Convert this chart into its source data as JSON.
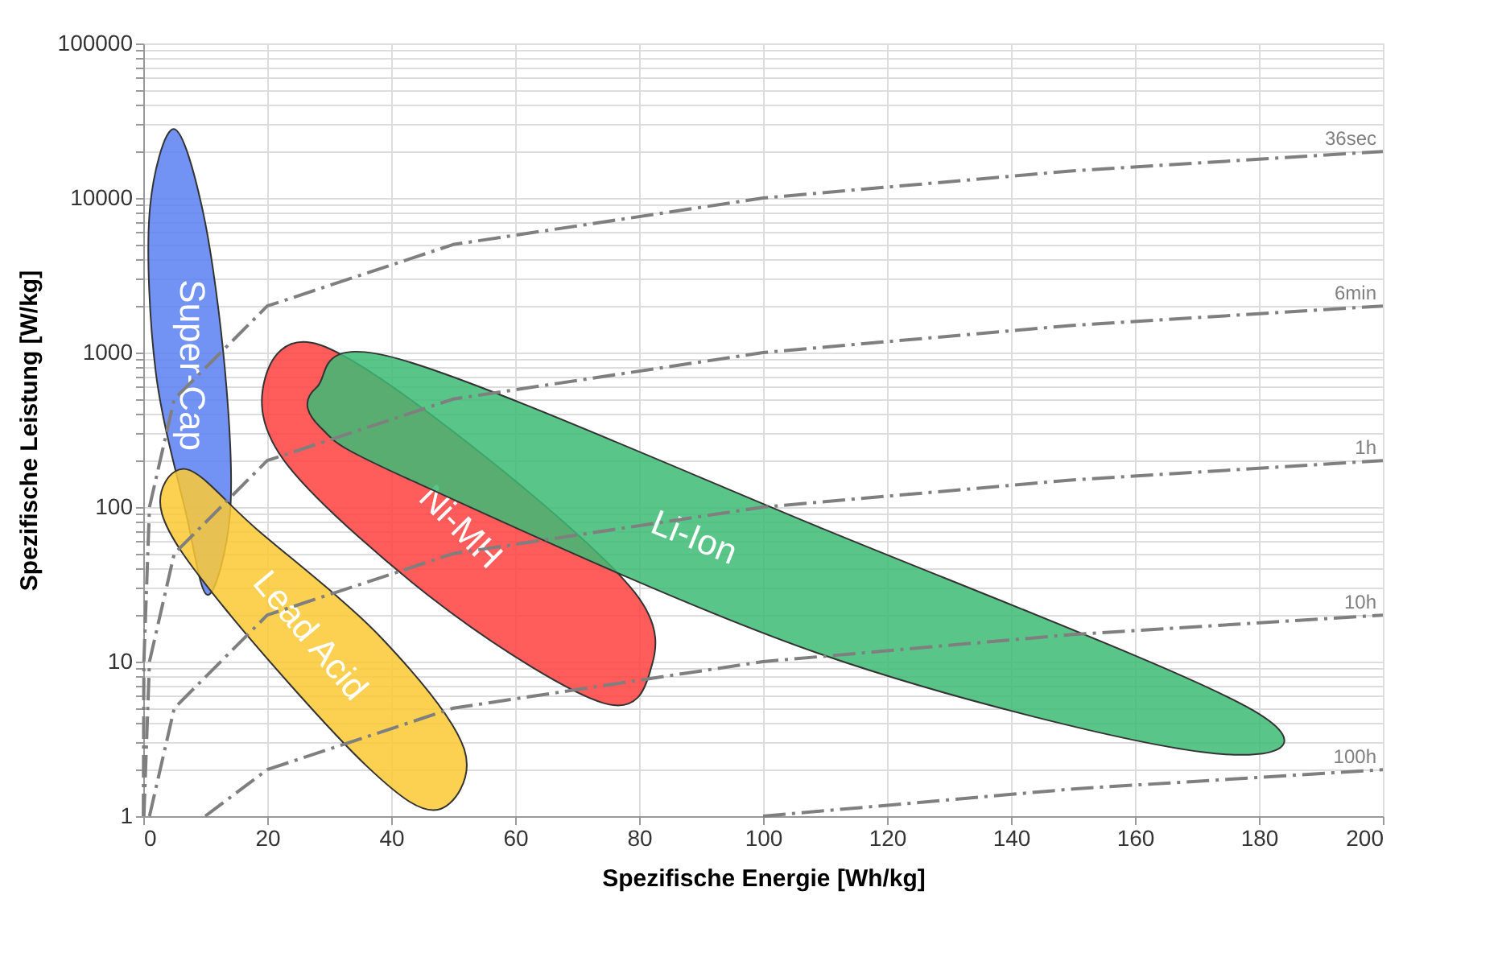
{
  "chart_data": {
    "type": "line",
    "xlabel": "Spezifische Energie [Wh/kg]",
    "ylabel": "Spezifische Leistung [W/kg]",
    "xlim": [
      0,
      200
    ],
    "xticks": [
      0,
      20,
      40,
      60,
      80,
      100,
      120,
      140,
      160,
      180,
      200
    ],
    "ylim": [
      1,
      100000
    ],
    "log": "y",
    "yticks": [
      1,
      {
        "value": 2,
        "label": null
      },
      {
        "value": 3,
        "label": null
      },
      {
        "value": 4,
        "label": null
      },
      {
        "value": 5,
        "label": null
      },
      {
        "value": 6,
        "label": null
      },
      {
        "value": 7,
        "label": null
      },
      {
        "value": 8,
        "label": null
      },
      {
        "value": 9,
        "label": null
      },
      10,
      {
        "value": 20,
        "label": null
      },
      {
        "value": 30,
        "label": null
      },
      {
        "value": 40,
        "label": null
      },
      {
        "value": 50,
        "label": null
      },
      {
        "value": 60,
        "label": null
      },
      {
        "value": 70,
        "label": null
      },
      {
        "value": 80,
        "label": null
      },
      {
        "value": 90,
        "label": null
      },
      100,
      {
        "value": 200,
        "label": null
      },
      {
        "value": 300,
        "label": null
      },
      {
        "value": 400,
        "label": null
      },
      {
        "value": 500,
        "label": null
      },
      {
        "value": 600,
        "label": null
      },
      {
        "value": 700,
        "label": null
      },
      {
        "value": 800,
        "label": null
      },
      {
        "value": 900,
        "label": null
      },
      1000,
      {
        "value": 2000,
        "label": null
      },
      {
        "value": 3000,
        "label": null
      },
      {
        "value": 4000,
        "label": null
      },
      {
        "value": 5000,
        "label": null
      },
      {
        "value": 6000,
        "label": null
      },
      {
        "value": 7000,
        "label": null
      },
      {
        "value": 8000,
        "label": null
      },
      {
        "value": 9000,
        "label": null
      },
      10000,
      {
        "value": 20000,
        "label": null
      },
      {
        "value": 30000,
        "label": null
      },
      {
        "value": 40000,
        "label": null
      },
      {
        "value": 50000,
        "label": null
      },
      {
        "value": 60000,
        "label": null
      },
      {
        "value": 70000,
        "label": null
      },
      {
        "value": 80000,
        "label": null
      },
      {
        "value": 90000,
        "label": null
      },
      100000
    ],
    "grid": true,
    "marker": "none",
    "series": [
      {
        "name": "36sec",
        "line_style": "dashed",
        "color": "#7f7f7f",
        "x": [
          0.01,
          0.1,
          1,
          5,
          20,
          50,
          100,
          150,
          200
        ],
        "values": [
          1,
          10,
          100,
          500,
          2000,
          5000,
          10000,
          15000,
          20000
        ]
      },
      {
        "name": "6min",
        "line_style": "dashed",
        "color": "#7f7f7f",
        "x": [
          0.1,
          1,
          5,
          20,
          50,
          100,
          150,
          200
        ],
        "values": [
          1,
          10,
          50,
          200,
          500,
          1000,
          1500,
          2000
        ]
      },
      {
        "name": "1h",
        "line_style": "dashed",
        "color": "#7f7f7f",
        "x": [
          1,
          5,
          20,
          50,
          100,
          150,
          200
        ],
        "values": [
          1,
          5,
          20,
          50,
          100,
          150,
          200
        ]
      },
      {
        "name": "10h",
        "line_style": "dashed",
        "color": "#7f7f7f",
        "x": [
          10,
          20,
          50,
          100,
          150,
          200
        ],
        "values": [
          1,
          2,
          5,
          10,
          15,
          20
        ]
      },
      {
        "name": "100h",
        "line_style": "dashed",
        "color": "#7f7f7f",
        "x": [
          100,
          150,
          200
        ],
        "values": [
          1,
          1.5,
          2
        ]
      },
      {
        "name": "Super-Cap",
        "type": "area",
        "color": "#5b80f2",
        "x": [
          4.9,
          9.7,
          13.2,
          14.0,
          10.4,
          6.9,
          2.0,
          1.0
        ],
        "values": [
          28000,
          7900,
          755,
          91,
          27,
          91,
          755,
          7900
        ]
      },
      {
        "name": "Lead Acid",
        "type": "area",
        "color": "#fcc934",
        "x": [
          6.9,
          18.3,
          38.6,
          51.8,
          47.5,
          36.1,
          13.2,
          3.0
        ],
        "values": [
          176,
          72,
          14,
          2.7,
          1.1,
          2.1,
          22,
          91
        ]
      },
      {
        "name": "Ni-MH",
        "type": "area",
        "color": "#ff4040",
        "x": [
          19.6,
          28.5,
          53.9,
          79.3,
          81.8,
          74.2,
          48.8,
          23.4
        ],
        "values": [
          670,
          1120,
          233,
          28,
          8.7,
          5.4,
          22,
          184
        ]
      },
      {
        "name": "Li-Ion",
        "type": "area",
        "color": "#3dbb74",
        "x": [
          28.0,
          41.2,
          109.8,
          179.2,
          170.8,
          109.8,
          43.7,
          28.5
        ],
        "values": [
          597,
          910,
          72,
          4.8,
          2.6,
          11,
          146,
          331
        ]
      }
    ]
  }
}
